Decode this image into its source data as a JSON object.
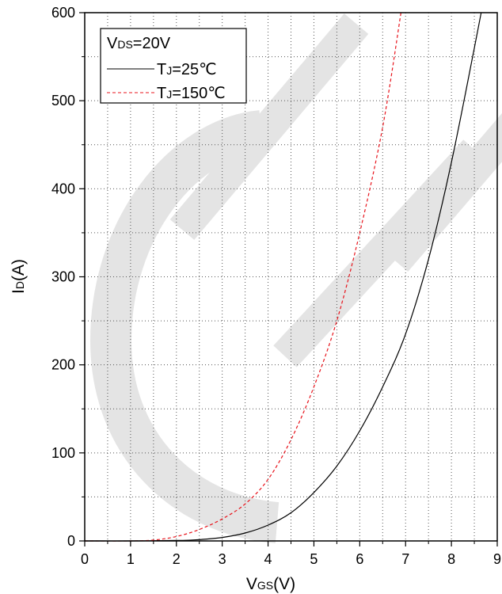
{
  "chart_data": {
    "type": "line",
    "xlabel": {
      "main": "V",
      "sub": "GS",
      "unit": "(V)"
    },
    "ylabel": {
      "main": "I",
      "sub": "D",
      "unit": "(A)"
    },
    "xlim": [
      0,
      9
    ],
    "ylim": [
      0,
      600
    ],
    "xticks": [
      "0",
      "1",
      "2",
      "3",
      "4",
      "5",
      "6",
      "7",
      "8",
      "9"
    ],
    "yticks": [
      "0",
      "100",
      "200",
      "300",
      "400",
      "500",
      "600"
    ],
    "grid": "dotted",
    "legend_position": "top-left",
    "legend_title": {
      "main": "V",
      "sub": "DS",
      "value": "=20V"
    },
    "watermark": "CET",
    "series": [
      {
        "name": "TJ=25℃",
        "name_main": "T",
        "name_sub": "J",
        "name_value": "=25℃",
        "color": "#000000",
        "dash": "solid",
        "x": [
          0,
          1,
          2,
          2.5,
          3,
          3.5,
          4,
          4.5,
          5,
          5.5,
          6,
          6.5,
          7,
          7.5,
          8,
          8.5,
          8.65
        ],
        "y": [
          0,
          0,
          0.5,
          1.5,
          4,
          9,
          18,
          32,
          55,
          85,
          125,
          175,
          235,
          320,
          430,
          560,
          600
        ]
      },
      {
        "name": "TJ=150℃",
        "name_main": "T",
        "name_sub": "J",
        "name_value": "=150℃",
        "color": "#e8141c",
        "dash": "dashed",
        "x": [
          0,
          1,
          1.5,
          2,
          2.5,
          3,
          3.5,
          4,
          4.5,
          5,
          5.5,
          6,
          6.5,
          6.9
        ],
        "y": [
          0,
          0,
          1,
          5,
          13,
          25,
          42,
          70,
          115,
          175,
          250,
          350,
          470,
          600
        ]
      }
    ]
  }
}
